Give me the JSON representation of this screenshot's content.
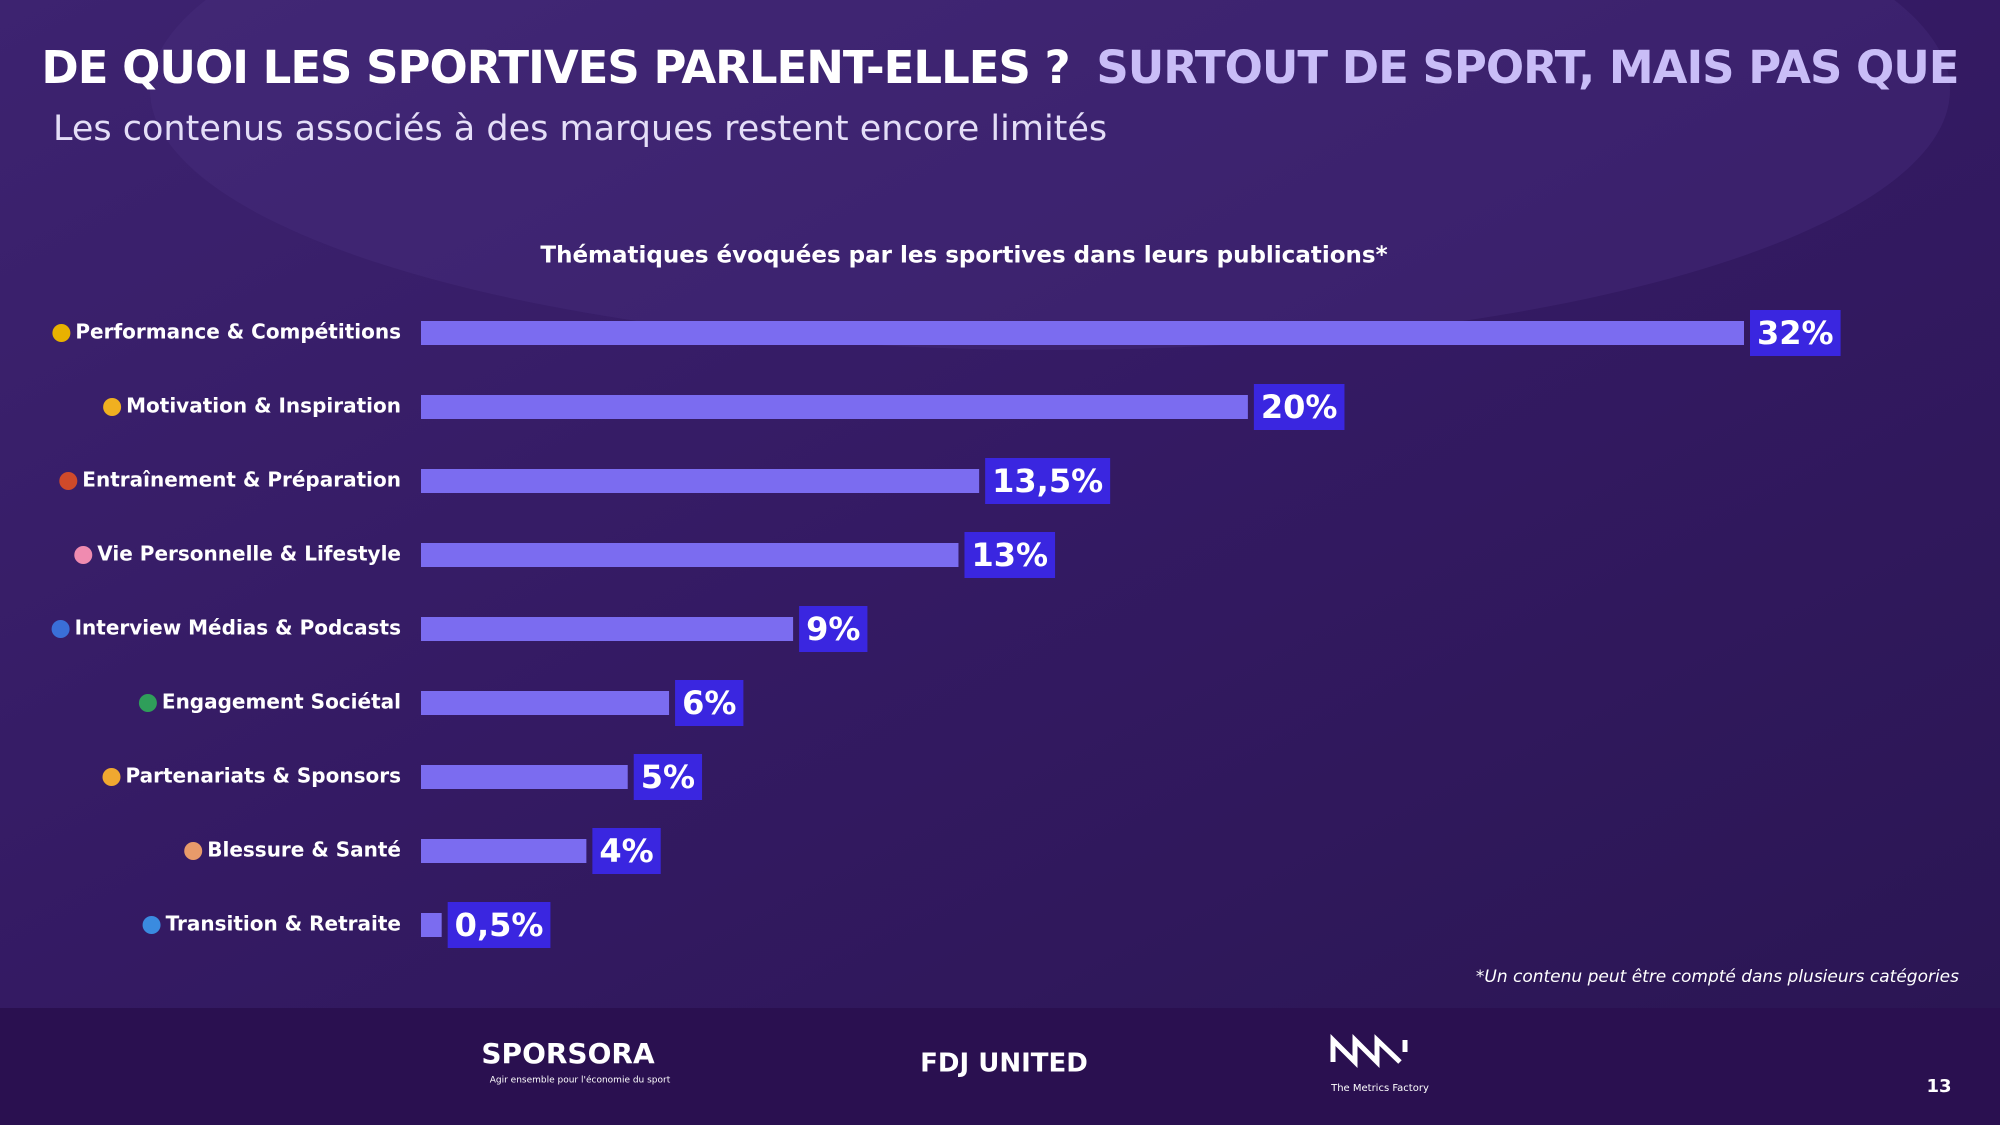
{
  "header": {
    "title": "DE QUOI LES SPORTIVES PARLENT-ELLES ?",
    "title_highlight": "SURTOUT DE SPORT, MAIS PAS QUE",
    "subtitle": "Les contenus associés à des marques restent encore limités"
  },
  "chart_data": {
    "type": "bar",
    "orientation": "horizontal",
    "title": "Thématiques évoquées par les sportives dans leurs publications*",
    "categories": [
      "Performance & Compétitions",
      "Motivation & Inspiration",
      "Entraînement & Préparation",
      "Vie Personnelle & Lifestyle",
      "Interview Médias & Podcasts",
      "Engagement Sociétal",
      "Partenariats & Sponsors",
      "Blessure & Santé",
      "Transition & Retraite"
    ],
    "values": [
      32,
      20,
      13.5,
      13,
      9,
      6,
      5,
      4,
      0.5
    ],
    "value_labels": [
      "32%",
      "20%",
      "13,5%",
      "13%",
      "9%",
      "6%",
      "5%",
      "4%",
      "0,5%"
    ],
    "color": "#7b6cf0",
    "label_color": "#3a26e0"
  },
  "footnote": "*Un contenu peut être compté dans plusieurs catégories",
  "footer": {
    "logo_1": "SPORSORA",
    "logo_1_tagline": "Agir ensemble pour l'économie du sport",
    "logo_2": "FDJ UNITED",
    "logo_3": "The Metrics Factory",
    "page_number": "13"
  }
}
